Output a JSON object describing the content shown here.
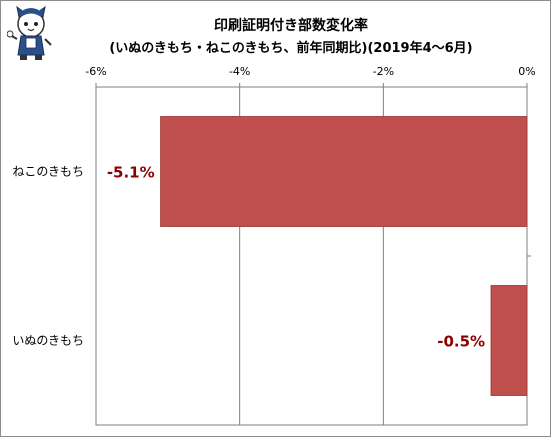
{
  "title": "印刷証明付き部数変化率",
  "subtitle": "(いぬのきもち・ねこのきもち、前年同期比)(2019年4～6月)",
  "colors": {
    "bar": "#c0504d",
    "bar_border": "#a33b38",
    "label": "#8b0000",
    "grid": "#7f7f7f"
  },
  "chart_data": {
    "type": "bar",
    "orientation": "horizontal",
    "title": "印刷証明付き部数変化率",
    "subtitle": "(いぬのきもち・ねこのきもち、前年同期比)(2019年4～6月)",
    "categories": [
      "ねこのきもち",
      "いぬのきもち"
    ],
    "values": [
      -5.1,
      -0.5
    ],
    "data_labels": [
      "-5.1%",
      "-0.5%"
    ],
    "xlim": [
      -6,
      0
    ],
    "ticks": [
      -6,
      -4,
      -2,
      0
    ],
    "tick_labels": [
      "-6%",
      "-4%",
      "-2%",
      "0%"
    ],
    "axis_position": "top",
    "grid": true,
    "legend": "none"
  }
}
